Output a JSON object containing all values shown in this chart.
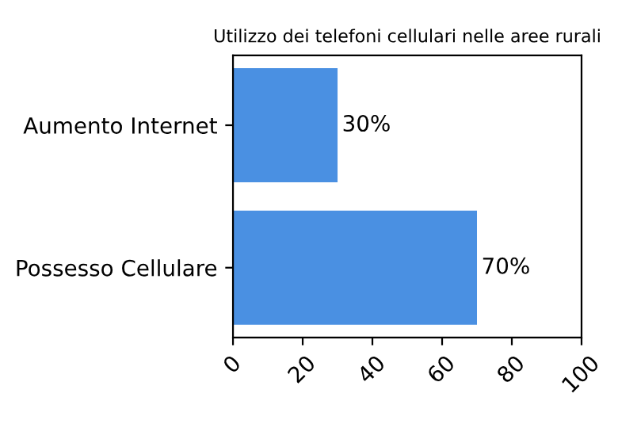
{
  "chart_data": {
    "type": "bar",
    "orientation": "horizontal",
    "title": "Utilizzo dei telefoni cellulari nelle aree rurali",
    "categories": [
      "Aumento Internet",
      "Possesso Cellulare"
    ],
    "values": [
      30,
      70
    ],
    "color": "#4a90e2",
    "value_labels": [
      "30%",
      "70%"
    ],
    "xlim": [
      0,
      100
    ],
    "xticks": [
      0,
      20,
      40,
      60,
      80,
      100
    ],
    "grid": false
  }
}
